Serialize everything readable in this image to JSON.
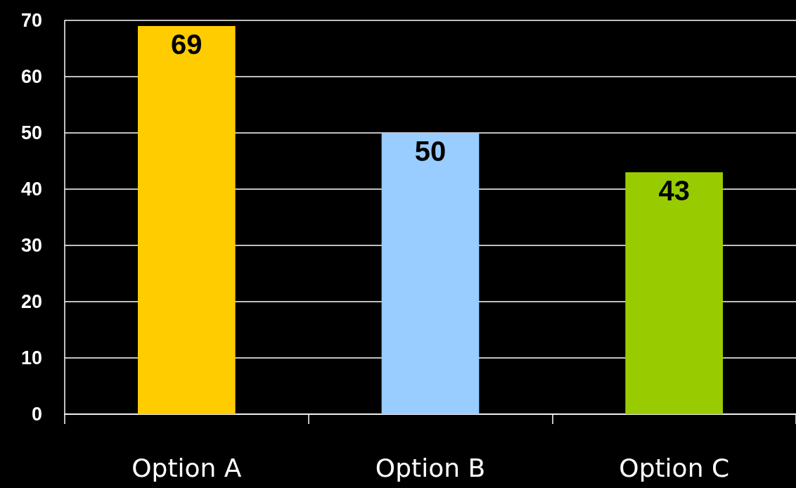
{
  "chart_data": {
    "type": "bar",
    "categories": [
      "Option A",
      "Option B",
      "Option C"
    ],
    "values": [
      69,
      50,
      43
    ],
    "colors": [
      "#ffcc00",
      "#99ccff",
      "#99cc00"
    ],
    "ylim": [
      0,
      70
    ],
    "yticks": [
      0,
      10,
      20,
      30,
      40,
      50,
      60,
      70
    ],
    "grid": "y",
    "data_labels": true
  }
}
